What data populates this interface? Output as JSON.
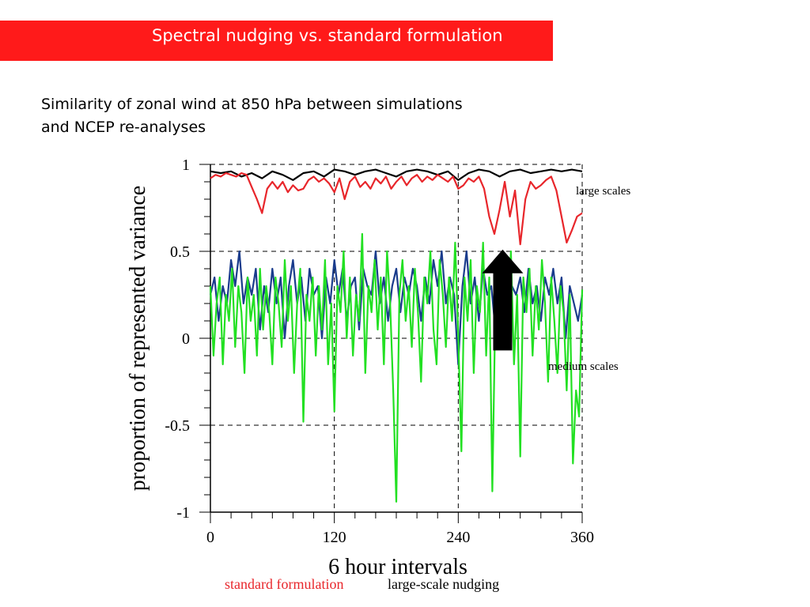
{
  "header": {
    "title": "Spectral nudging vs. standard formulation",
    "subtitle_line1": "Similarity of zonal wind at 850 hPa between simulations",
    "subtitle_line2": "and NCEP re-analyses",
    "title_bar_color": "#ff1a1a"
  },
  "chart_data": {
    "type": "line",
    "ylabel": "proportion of represented variance",
    "xlabel": "6 hour intervals",
    "xlim": [
      0,
      360
    ],
    "ylim": [
      -1,
      1
    ],
    "x_ticks": [
      0,
      120,
      240,
      360
    ],
    "y_ticks": [
      1,
      0.5,
      0,
      -0.5,
      -1
    ],
    "x_tick_labels": [
      "0",
      "120",
      "240",
      "360"
    ],
    "y_tick_labels": [
      "1",
      "0.5",
      "0",
      "-0.5",
      "-1"
    ],
    "grid": "dashed",
    "annotations": [
      "large scales",
      "medium scales"
    ],
    "arrow": {
      "x": 283,
      "y_from": -0.07,
      "y_to": 0.51,
      "color": "#000000"
    },
    "legend": {
      "placement": "bottom",
      "entries": [
        {
          "label": "standard formulation",
          "color": "#e8262b"
        },
        {
          "label": "large-scale nudging",
          "color": "#000000"
        }
      ]
    },
    "series": [
      {
        "key": "large_nudged",
        "color": "#000000",
        "x": [
          0,
          10,
          20,
          30,
          40,
          50,
          60,
          70,
          80,
          90,
          100,
          110,
          120,
          130,
          140,
          150,
          160,
          170,
          180,
          190,
          200,
          210,
          220,
          230,
          240,
          250,
          260,
          270,
          280,
          290,
          300,
          310,
          320,
          330,
          340,
          350,
          360
        ],
        "values": [
          0.96,
          0.95,
          0.96,
          0.93,
          0.95,
          0.92,
          0.96,
          0.94,
          0.91,
          0.95,
          0.96,
          0.93,
          0.97,
          0.96,
          0.94,
          0.96,
          0.97,
          0.95,
          0.93,
          0.96,
          0.97,
          0.96,
          0.94,
          0.96,
          0.91,
          0.95,
          0.97,
          0.96,
          0.93,
          0.96,
          0.97,
          0.95,
          0.96,
          0.97,
          0.96,
          0.97,
          0.96
        ]
      },
      {
        "key": "large_standard",
        "color": "#e8262b",
        "x": [
          0,
          5,
          10,
          15,
          20,
          25,
          30,
          35,
          40,
          45,
          50,
          55,
          60,
          65,
          70,
          75,
          80,
          85,
          90,
          95,
          100,
          105,
          110,
          115,
          120,
          125,
          130,
          135,
          140,
          145,
          150,
          155,
          160,
          165,
          170,
          175,
          180,
          185,
          190,
          195,
          200,
          205,
          210,
          215,
          220,
          225,
          230,
          235,
          240,
          245,
          250,
          255,
          260,
          265,
          270,
          275,
          280,
          285,
          290,
          295,
          300,
          305,
          310,
          315,
          320,
          325,
          330,
          335,
          340,
          345,
          350,
          355,
          360
        ],
        "values": [
          0.92,
          0.94,
          0.93,
          0.95,
          0.94,
          0.93,
          0.95,
          0.94,
          0.87,
          0.8,
          0.72,
          0.86,
          0.9,
          0.86,
          0.9,
          0.84,
          0.88,
          0.85,
          0.86,
          0.91,
          0.93,
          0.9,
          0.92,
          0.89,
          0.84,
          0.92,
          0.8,
          0.9,
          0.93,
          0.87,
          0.9,
          0.86,
          0.92,
          0.89,
          0.93,
          0.86,
          0.9,
          0.93,
          0.88,
          0.92,
          0.94,
          0.9,
          0.93,
          0.91,
          0.94,
          0.92,
          0.9,
          0.93,
          0.86,
          0.88,
          0.92,
          0.9,
          0.93,
          0.86,
          0.7,
          0.6,
          0.74,
          0.9,
          0.7,
          0.85,
          0.54,
          0.8,
          0.9,
          0.86,
          0.88,
          0.91,
          0.93,
          0.85,
          0.7,
          0.55,
          0.62,
          0.7,
          0.72
        ]
      },
      {
        "key": "medium_nudged",
        "color": "#1a3c8c",
        "x": [
          0,
          4,
          8,
          12,
          16,
          20,
          24,
          28,
          32,
          36,
          40,
          44,
          48,
          52,
          56,
          60,
          64,
          68,
          72,
          76,
          80,
          84,
          88,
          92,
          96,
          100,
          104,
          108,
          112,
          116,
          120,
          124,
          128,
          132,
          136,
          140,
          144,
          148,
          152,
          156,
          160,
          164,
          168,
          172,
          176,
          180,
          184,
          188,
          192,
          196,
          200,
          204,
          208,
          212,
          216,
          220,
          224,
          228,
          232,
          236,
          240,
          244,
          248,
          252,
          256,
          260,
          264,
          268,
          272,
          276,
          280,
          284,
          288,
          292,
          296,
          300,
          304,
          308,
          312,
          316,
          320,
          324,
          328,
          332,
          336,
          340,
          344,
          348,
          352,
          356,
          360
        ],
        "values": [
          0.25,
          0.35,
          0.1,
          0.3,
          0.2,
          0.45,
          0.3,
          0.5,
          0.2,
          0.35,
          0.25,
          0.4,
          0.05,
          0.3,
          0.15,
          0.4,
          0.2,
          0.35,
          0.0,
          0.3,
          0.45,
          0.2,
          0.35,
          0.1,
          0.4,
          0.25,
          0.3,
          0.0,
          0.35,
          0.2,
          0.45,
          0.25,
          0.4,
          0.1,
          0.3,
          0.35,
          0.05,
          0.4,
          0.3,
          0.25,
          0.5,
          0.2,
          0.35,
          0.1,
          0.3,
          0.4,
          0.15,
          0.35,
          0.25,
          0.4,
          0.3,
          0.1,
          0.35,
          0.2,
          0.45,
          0.3,
          0.5,
          0.2,
          0.35,
          0.25,
          -0.15,
          0.3,
          0.5,
          0.2,
          0.35,
          0.1,
          0.4,
          0.25,
          0.3,
          0.05,
          0.35,
          0.2,
          0.4,
          0.3,
          0.25,
          0.35,
          0.15,
          0.4,
          0.2,
          0.3,
          0.1,
          0.35,
          0.25,
          0.4,
          0.2,
          0.35,
          0.0,
          0.3,
          0.2,
          0.1,
          0.25
        ]
      },
      {
        "key": "medium_standard",
        "color": "#22e022",
        "x": [
          0,
          3,
          6,
          9,
          12,
          15,
          18,
          21,
          24,
          27,
          30,
          33,
          36,
          39,
          42,
          45,
          48,
          51,
          54,
          57,
          60,
          63,
          66,
          69,
          72,
          75,
          78,
          81,
          84,
          87,
          90,
          93,
          96,
          99,
          102,
          105,
          108,
          111,
          114,
          117,
          120,
          123,
          126,
          129,
          132,
          135,
          138,
          141,
          144,
          147,
          150,
          153,
          156,
          159,
          162,
          165,
          168,
          171,
          174,
          177,
          180,
          183,
          186,
          189,
          192,
          195,
          198,
          201,
          204,
          207,
          210,
          213,
          216,
          219,
          222,
          225,
          228,
          231,
          234,
          237,
          240,
          243,
          246,
          249,
          252,
          255,
          258,
          261,
          264,
          267,
          270,
          273,
          276,
          279,
          282,
          285,
          288,
          291,
          294,
          297,
          300,
          303,
          306,
          309,
          312,
          315,
          318,
          321,
          324,
          327,
          330,
          333,
          336,
          339,
          342,
          345,
          348,
          351,
          354,
          357,
          360
        ],
        "values": [
          0.3,
          -0.1,
          0.2,
          0.35,
          -0.15,
          0.25,
          0.1,
          0.4,
          -0.05,
          0.3,
          0.15,
          -0.2,
          0.35,
          0.1,
          0.25,
          -0.1,
          0.4,
          0.05,
          0.3,
          0.15,
          -0.15,
          0.35,
          0.2,
          -0.05,
          0.45,
          0.1,
          0.3,
          -0.2,
          0.2,
          0.4,
          -0.48,
          0.25,
          0.1,
          0.35,
          -0.1,
          0.3,
          0.05,
          0.45,
          -0.15,
          0.2,
          -0.42,
          0.3,
          0.15,
          0.5,
          0.0,
          0.35,
          -0.1,
          0.25,
          0.1,
          0.6,
          -0.2,
          0.3,
          0.15,
          0.45,
          0.05,
          0.35,
          -0.15,
          0.5,
          0.2,
          -0.3,
          -0.94,
          0.25,
          0.45,
          0.1,
          0.3,
          -0.05,
          0.4,
          0.15,
          -0.25,
          0.35,
          0.2,
          0.5,
          0.05,
          -0.15,
          0.45,
          0.25,
          -0.05,
          0.35,
          0.1,
          0.55,
          0.02,
          -0.65,
          0.35,
          0.1,
          0.45,
          -0.2,
          0.3,
          0.15,
          0.55,
          -0.1,
          0.35,
          -0.88,
          0.2,
          0.45,
          -0.05,
          0.3,
          0.1,
          0.5,
          -0.15,
          0.25,
          -0.68,
          0.35,
          0.15,
          0.4,
          -0.1,
          0.3,
          0.05,
          0.45,
          0.2,
          -0.25,
          0.35,
          0.1,
          -0.2,
          0.3,
          0.15,
          -0.3,
          0.25,
          -0.72,
          -0.3,
          -0.45,
          0.28
        ]
      }
    ]
  }
}
